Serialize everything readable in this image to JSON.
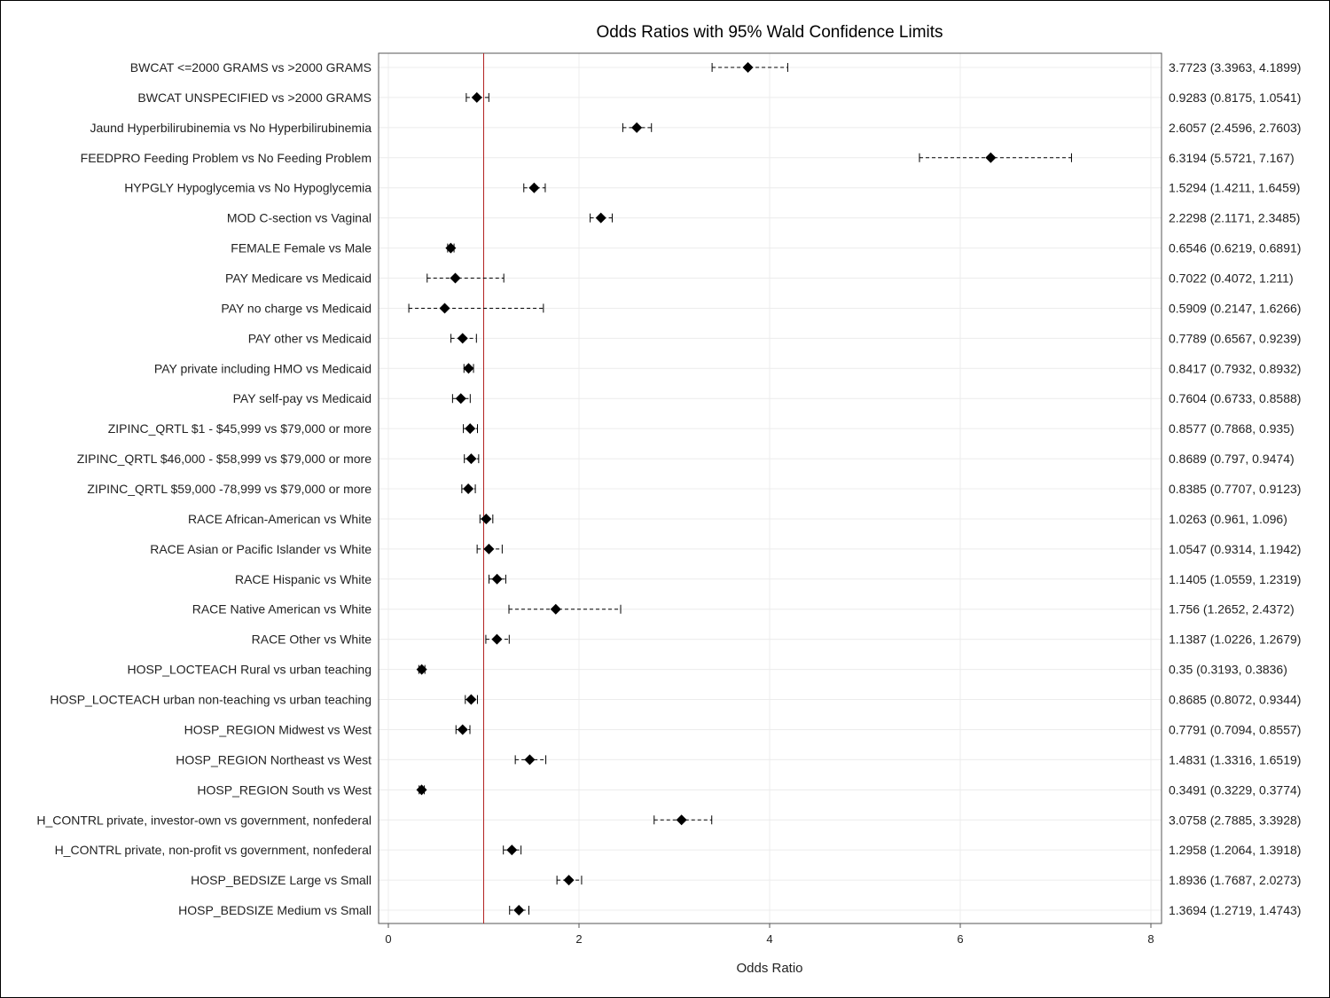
{
  "chart_data": {
    "type": "scatter",
    "title": "Odds Ratios with 95% Wald Confidence Limits",
    "xlabel": "Odds Ratio",
    "ylabel": "",
    "xlim": [
      0,
      8
    ],
    "xticks": [
      0,
      2,
      4,
      6,
      8
    ],
    "reference_line": 1,
    "grid": true,
    "colors": {
      "reference": "#b22222",
      "marker": "#000000",
      "grid": "#ececec",
      "frame": "#555555"
    },
    "rows": [
      {
        "label": "BWCAT <=2000 GRAMS vs >2000 GRAMS",
        "estimate": 3.7723,
        "lower": 3.3963,
        "upper": 4.1899,
        "text": "3.7723 (3.3963, 4.1899)"
      },
      {
        "label": "BWCAT UNSPECIFIED vs >2000 GRAMS",
        "estimate": 0.9283,
        "lower": 0.8175,
        "upper": 1.0541,
        "text": "0.9283 (0.8175, 1.0541)"
      },
      {
        "label": "Jaund Hyperbilirubinemia vs No Hyperbilirubinemia",
        "estimate": 2.6057,
        "lower": 2.4596,
        "upper": 2.7603,
        "text": "2.6057 (2.4596, 2.7603)"
      },
      {
        "label": "FEEDPRO Feeding Problem vs No Feeding Problem",
        "estimate": 6.3194,
        "lower": 5.5721,
        "upper": 7.167,
        "text": "6.3194 (5.5721, 7.167)"
      },
      {
        "label": "HYPGLY Hypoglycemia vs No Hypoglycemia",
        "estimate": 1.5294,
        "lower": 1.4211,
        "upper": 1.6459,
        "text": "1.5294 (1.4211, 1.6459)"
      },
      {
        "label": "MOD C-section vs Vaginal",
        "estimate": 2.2298,
        "lower": 2.1171,
        "upper": 2.3485,
        "text": "2.2298 (2.1171, 2.3485)"
      },
      {
        "label": "FEMALE Female vs Male",
        "estimate": 0.6546,
        "lower": 0.6219,
        "upper": 0.6891,
        "text": "0.6546 (0.6219, 0.6891)"
      },
      {
        "label": "PAY Medicare vs Medicaid",
        "estimate": 0.7022,
        "lower": 0.4072,
        "upper": 1.211,
        "text": "0.7022 (0.4072, 1.211)"
      },
      {
        "label": "PAY no charge vs Medicaid",
        "estimate": 0.5909,
        "lower": 0.2147,
        "upper": 1.6266,
        "text": "0.5909 (0.2147, 1.6266)"
      },
      {
        "label": "PAY other vs Medicaid",
        "estimate": 0.7789,
        "lower": 0.6567,
        "upper": 0.9239,
        "text": "0.7789 (0.6567, 0.9239)"
      },
      {
        "label": "PAY private including HMO vs Medicaid",
        "estimate": 0.8417,
        "lower": 0.7932,
        "upper": 0.8932,
        "text": "0.8417 (0.7932, 0.8932)"
      },
      {
        "label": "PAY self-pay vs Medicaid",
        "estimate": 0.7604,
        "lower": 0.6733,
        "upper": 0.8588,
        "text": "0.7604 (0.6733, 0.8588)"
      },
      {
        "label": "ZIPINC_QRTL $1 - $45,999 vs $79,000 or more",
        "estimate": 0.8577,
        "lower": 0.7868,
        "upper": 0.935,
        "text": "0.8577 (0.7868, 0.935)"
      },
      {
        "label": "ZIPINC_QRTL $46,000 - $58,999 vs $79,000 or more",
        "estimate": 0.8689,
        "lower": 0.797,
        "upper": 0.9474,
        "text": "0.8689 (0.797, 0.9474)"
      },
      {
        "label": "ZIPINC_QRTL $59,000 -78,999 vs $79,000 or more",
        "estimate": 0.8385,
        "lower": 0.7707,
        "upper": 0.9123,
        "text": "0.8385 (0.7707, 0.9123)"
      },
      {
        "label": "RACE African-American vs White",
        "estimate": 1.0263,
        "lower": 0.961,
        "upper": 1.096,
        "text": "1.0263 (0.961, 1.096)"
      },
      {
        "label": "RACE Asian or Pacific Islander vs White",
        "estimate": 1.0547,
        "lower": 0.9314,
        "upper": 1.1942,
        "text": "1.0547 (0.9314, 1.1942)"
      },
      {
        "label": "RACE Hispanic vs White",
        "estimate": 1.1405,
        "lower": 1.0559,
        "upper": 1.2319,
        "text": "1.1405 (1.0559, 1.2319)"
      },
      {
        "label": "RACE Native American vs White",
        "estimate": 1.756,
        "lower": 1.2652,
        "upper": 2.4372,
        "text": "1.756 (1.2652, 2.4372)"
      },
      {
        "label": "RACE Other vs White",
        "estimate": 1.1387,
        "lower": 1.0226,
        "upper": 1.2679,
        "text": "1.1387 (1.0226, 1.2679)"
      },
      {
        "label": "HOSP_LOCTEACH Rural vs urban teaching",
        "estimate": 0.35,
        "lower": 0.3193,
        "upper": 0.3836,
        "text": "0.35 (0.3193, 0.3836)"
      },
      {
        "label": "HOSP_LOCTEACH urban non-teaching vs urban teaching",
        "estimate": 0.8685,
        "lower": 0.8072,
        "upper": 0.9344,
        "text": "0.8685 (0.8072, 0.9344)"
      },
      {
        "label": "HOSP_REGION Midwest vs West",
        "estimate": 0.7791,
        "lower": 0.7094,
        "upper": 0.8557,
        "text": "0.7791 (0.7094, 0.8557)"
      },
      {
        "label": "HOSP_REGION Northeast vs West",
        "estimate": 1.4831,
        "lower": 1.3316,
        "upper": 1.6519,
        "text": "1.4831 (1.3316, 1.6519)"
      },
      {
        "label": "HOSP_REGION South vs West",
        "estimate": 0.3491,
        "lower": 0.3229,
        "upper": 0.3774,
        "text": "0.3491 (0.3229, 0.3774)"
      },
      {
        "label": "H_CONTRL private, investor-own vs government, nonfederal",
        "estimate": 3.0758,
        "lower": 2.7885,
        "upper": 3.3928,
        "text": "3.0758 (2.7885, 3.3928)"
      },
      {
        "label": "H_CONTRL private, non-profit vs government, nonfederal",
        "estimate": 1.2958,
        "lower": 1.2064,
        "upper": 1.3918,
        "text": "1.2958 (1.2064, 1.3918)"
      },
      {
        "label": "HOSP_BEDSIZE Large vs Small",
        "estimate": 1.8936,
        "lower": 1.7687,
        "upper": 2.0273,
        "text": "1.8936 (1.7687, 2.0273)"
      },
      {
        "label": "HOSP_BEDSIZE Medium vs Small",
        "estimate": 1.3694,
        "lower": 1.2719,
        "upper": 1.4743,
        "text": "1.3694 (1.2719, 1.4743)"
      }
    ]
  }
}
